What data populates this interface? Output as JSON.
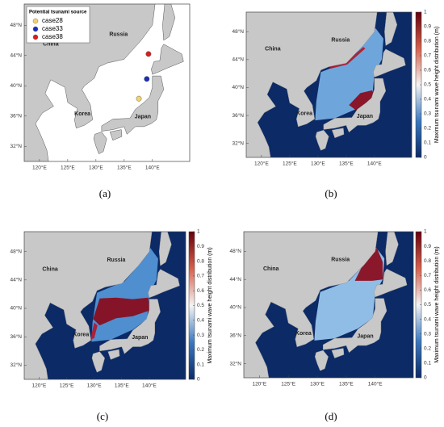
{
  "panels": [
    {
      "label": "(a)",
      "lat_ticks": [
        {
          "value": 48,
          "label": "48°N"
        },
        {
          "value": 44,
          "label": "44°N"
        },
        {
          "value": 40,
          "label": "40°N"
        },
        {
          "value": 36,
          "label": "36°N"
        },
        {
          "value": 32,
          "label": "32°N"
        }
      ],
      "lon_ticks": [
        {
          "value": 120,
          "label": "120°E"
        },
        {
          "value": 125,
          "label": "125°E"
        },
        {
          "value": 130,
          "label": "130°E"
        },
        {
          "value": 135,
          "label": "135°E"
        },
        {
          "value": 140,
          "label": "140°E"
        }
      ],
      "places": [
        "China",
        "Russia",
        "Korea",
        "Japan"
      ],
      "legend": {
        "title": "Potential tsunami source",
        "entries": [
          {
            "name": "case28",
            "color": "#f3d36e"
          },
          {
            "name": "case33",
            "color": "#1a2fb8"
          },
          {
            "name": "case38",
            "color": "#d42020"
          }
        ]
      }
    },
    {
      "label": "(b)",
      "lat_ticks": [
        {
          "value": 48,
          "label": "48°N"
        },
        {
          "value": 44,
          "label": "44°N"
        },
        {
          "value": 40,
          "label": "40°N"
        },
        {
          "value": 36,
          "label": "36°N"
        },
        {
          "value": 32,
          "label": "32°N"
        }
      ],
      "lon_ticks": [
        {
          "value": 120,
          "label": "120°E"
        },
        {
          "value": 125,
          "label": "125°E"
        },
        {
          "value": 130,
          "label": "130°E"
        },
        {
          "value": 135,
          "label": "135°E"
        },
        {
          "value": 140,
          "label": "140°E"
        }
      ],
      "places": [
        "China",
        "Russia",
        "Korea",
        "Japan"
      ],
      "colorbar": {
        "title": "Maximum tsunami wave height distribution (m)",
        "lim": [
          0,
          1
        ],
        "ticks": [
          0,
          0.1,
          0.2,
          0.3,
          0.4,
          0.5,
          0.6,
          0.7,
          0.8,
          0.9,
          1
        ]
      }
    },
    {
      "label": "(c)",
      "lat_ticks": [
        {
          "value": 48,
          "label": "48°N"
        },
        {
          "value": 44,
          "label": "44°N"
        },
        {
          "value": 40,
          "label": "40°N"
        },
        {
          "value": 36,
          "label": "36°N"
        },
        {
          "value": 32,
          "label": "32°N"
        }
      ],
      "lon_ticks": [
        {
          "value": 120,
          "label": "120°E"
        },
        {
          "value": 125,
          "label": "125°E"
        },
        {
          "value": 130,
          "label": "130°E"
        },
        {
          "value": 135,
          "label": "135°E"
        },
        {
          "value": 140,
          "label": "140°E"
        }
      ],
      "places": [
        "China",
        "Russia",
        "Korea",
        "Japan"
      ],
      "colorbar": {
        "title": "Maximum tsunami wave height distribution (m)",
        "lim": [
          0,
          1
        ],
        "ticks": [
          0,
          0.1,
          0.2,
          0.3,
          0.4,
          0.5,
          0.6,
          0.7,
          0.8,
          0.9,
          1
        ]
      }
    },
    {
      "label": "(d)",
      "lat_ticks": [
        {
          "value": 48,
          "label": "48°N"
        },
        {
          "value": 44,
          "label": "44°N"
        },
        {
          "value": 40,
          "label": "40°N"
        },
        {
          "value": 36,
          "label": "36°N"
        },
        {
          "value": 32,
          "label": "32°N"
        }
      ],
      "lon_ticks": [
        {
          "value": 120,
          "label": "120°E"
        },
        {
          "value": 125,
          "label": "125°E"
        },
        {
          "value": 130,
          "label": "130°E"
        },
        {
          "value": 135,
          "label": "135°E"
        },
        {
          "value": 140,
          "label": "140°E"
        }
      ],
      "places": [
        "China",
        "Russia",
        "Korea",
        "Japan"
      ],
      "colorbar": {
        "title": "Maximum tsunami wave height distribution (m)",
        "lim": [
          0,
          1
        ],
        "ticks": [
          0,
          0.1,
          0.2,
          0.3,
          0.4,
          0.5,
          0.6,
          0.7,
          0.8,
          0.9,
          1
        ]
      }
    }
  ]
}
